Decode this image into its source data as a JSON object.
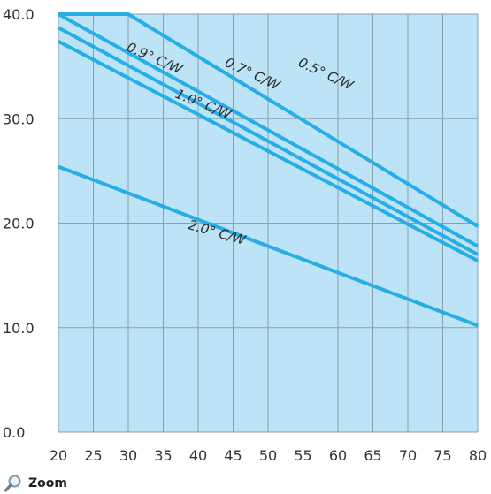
{
  "chart_data": {
    "type": "line",
    "title": "",
    "xlabel": "",
    "ylabel": "",
    "xlim": [
      20,
      80
    ],
    "ylim": [
      0,
      40
    ],
    "x_ticks": [
      20,
      25,
      30,
      35,
      40,
      45,
      50,
      55,
      60,
      65,
      70,
      75,
      80
    ],
    "x_tick_labels": [
      "20",
      "25",
      "30",
      "35",
      "40",
      "45",
      "50",
      "55",
      "60",
      "65",
      "70",
      "75",
      "80"
    ],
    "y_ticks": [
      0,
      10,
      20,
      30,
      40
    ],
    "y_tick_labels": [
      "0.0",
      "10.0",
      "20.0",
      "30.0",
      "40.0"
    ],
    "grid": true,
    "series": [
      {
        "name": "0.5° C/W",
        "x": [
          20,
          30,
          80
        ],
        "y": [
          40.0,
          40.0,
          19.7
        ]
      },
      {
        "name": "0.7° C/W",
        "x": [
          20,
          80
        ],
        "y": [
          40.0,
          17.8
        ]
      },
      {
        "name": "0.9° C/W",
        "x": [
          20,
          80
        ],
        "y": [
          38.7,
          17.0
        ]
      },
      {
        "name": "1.0° C/W",
        "x": [
          20,
          80
        ],
        "y": [
          37.4,
          16.4
        ]
      },
      {
        "name": "2.0° C/W",
        "x": [
          20,
          80
        ],
        "y": [
          25.4,
          10.2
        ]
      }
    ],
    "annotations": [
      {
        "text": "0.5° C/W",
        "x": 58,
        "y": 33.9,
        "rotate": 25
      },
      {
        "text": "0.7° C/W",
        "x": 47.5,
        "y": 33.9,
        "rotate": 25
      },
      {
        "text": "0.9° C/W",
        "x": 33.5,
        "y": 35.4,
        "rotate": 24
      },
      {
        "text": "1.0° C/W",
        "x": 40.5,
        "y": 31.0,
        "rotate": 22
      },
      {
        "text": "2.0° C/W",
        "x": 42.5,
        "y": 18.7,
        "rotate": 16
      }
    ],
    "colors": {
      "plot_bg": "#bde3f7",
      "grid": "#8a9fae",
      "line": "#27aee6"
    }
  },
  "footer": {
    "zoom_label": "Zoom",
    "zoom_icon": "magnifier-icon"
  }
}
